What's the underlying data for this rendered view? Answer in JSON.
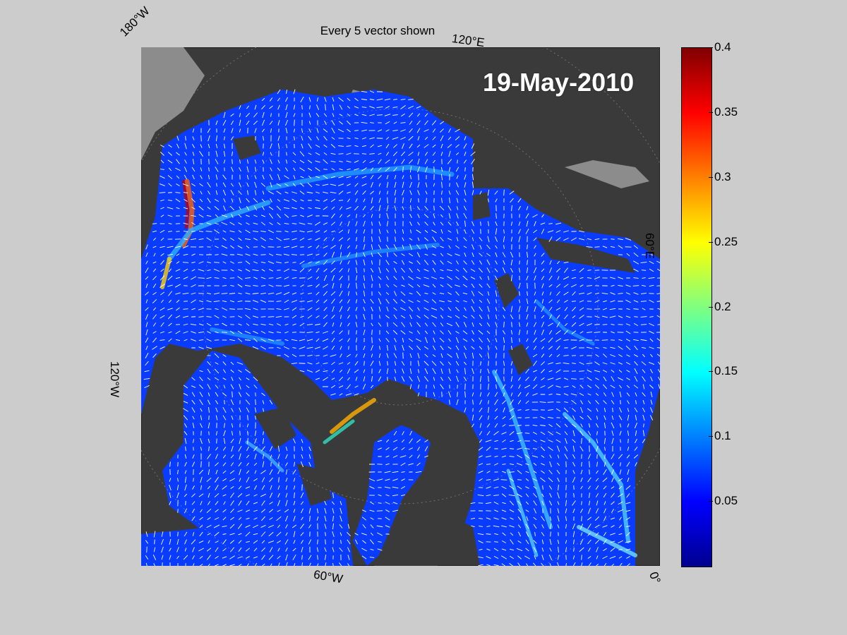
{
  "title": "Every 5 vector shown",
  "date_stamp": "19-May-2010",
  "map_labels": {
    "w180": "180°W",
    "e120": "120°E",
    "e60": "60°E",
    "w120": "120°W",
    "w60": "60°W",
    "zero": "0°"
  },
  "colorbar": {
    "min": 0,
    "max": 0.4,
    "ticks": [
      {
        "value": 0.4,
        "label": "0.4"
      },
      {
        "value": 0.35,
        "label": "0.35"
      },
      {
        "value": 0.3,
        "label": "0.3"
      },
      {
        "value": 0.25,
        "label": "0.25"
      },
      {
        "value": 0.2,
        "label": "0.2"
      },
      {
        "value": 0.15,
        "label": "0.15"
      },
      {
        "value": 0.1,
        "label": "0.1"
      },
      {
        "value": 0.05,
        "label": "0.05"
      }
    ],
    "colors": [
      "#00008f",
      "#0000ff",
      "#0080ff",
      "#00ffff",
      "#80ff80",
      "#ffff00",
      "#ff8000",
      "#ff0000",
      "#800000"
    ]
  },
  "colors": {
    "ocean_base": "#0a3cff",
    "land": "#3a3a3a",
    "land_light": "#8c8c8c",
    "vector": "#ffffff"
  }
}
